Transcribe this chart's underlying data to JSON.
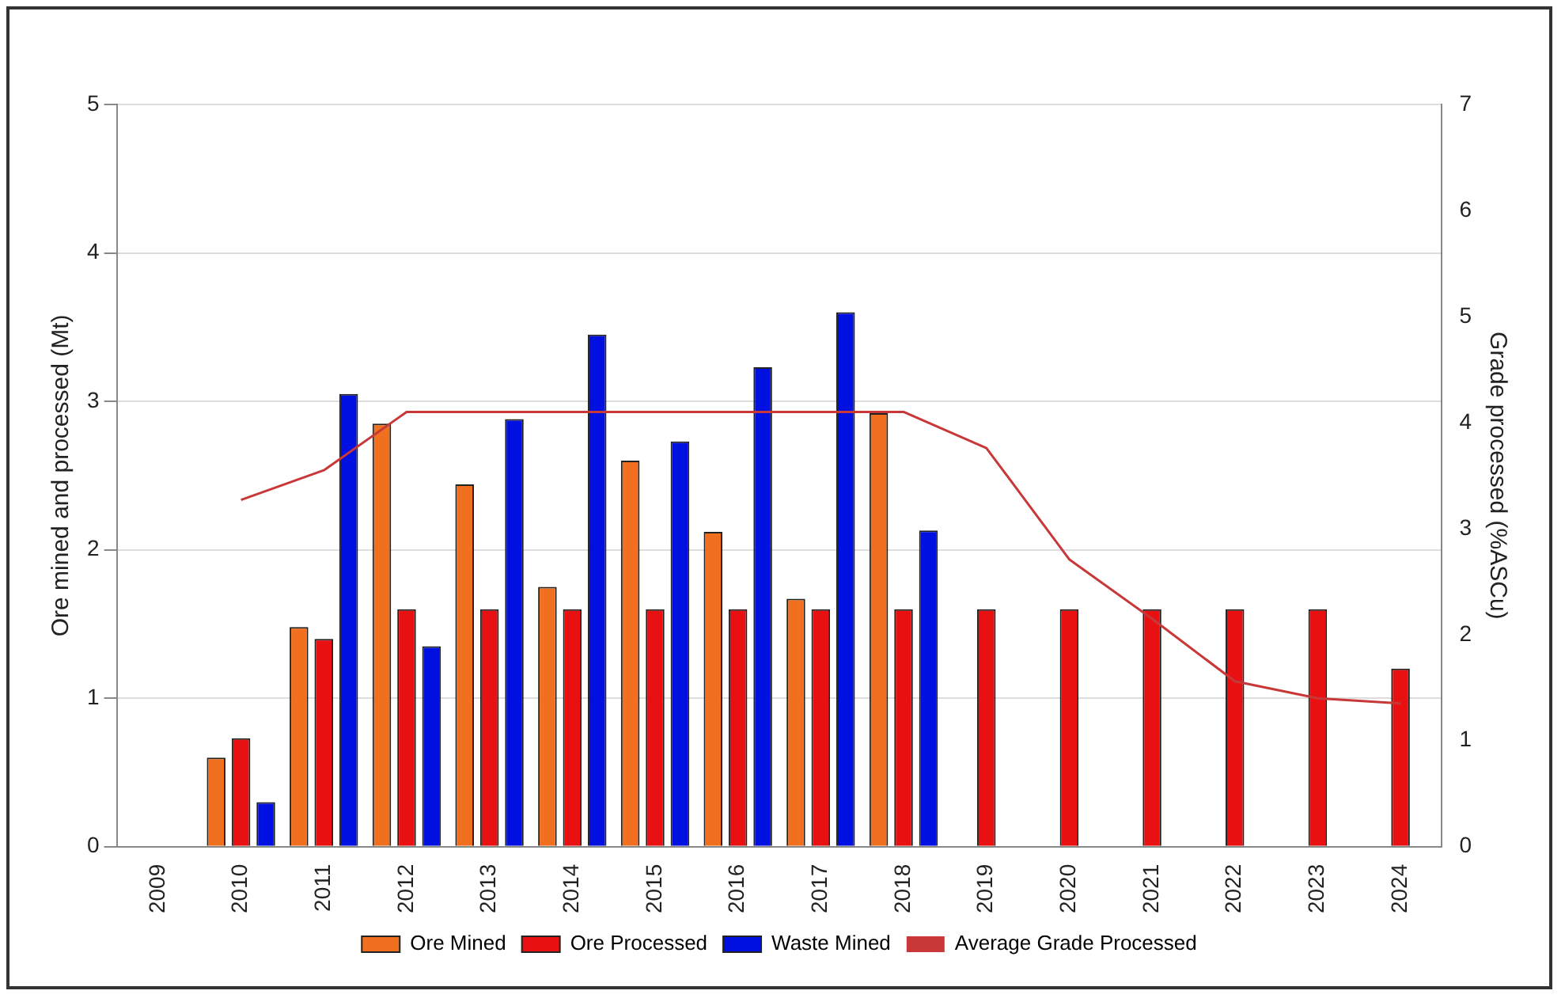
{
  "chart_data": {
    "type": "bar",
    "categories": [
      "2009",
      "2010",
      "2011",
      "2012",
      "2013",
      "2014",
      "2015",
      "2016",
      "2017",
      "2018",
      "2019",
      "2020",
      "2021",
      "2022",
      "2023",
      "2024"
    ],
    "series": [
      {
        "name": "Ore Mined",
        "color": "#f07020",
        "values": [
          null,
          0.6,
          1.48,
          2.85,
          2.44,
          1.75,
          2.6,
          2.12,
          1.67,
          2.92,
          null,
          null,
          null,
          null,
          null,
          null
        ]
      },
      {
        "name": "Ore Processed",
        "color": "#e81010",
        "values": [
          null,
          0.73,
          1.4,
          1.6,
          1.6,
          1.6,
          1.6,
          1.6,
          1.6,
          1.6,
          1.6,
          1.6,
          1.6,
          1.6,
          1.6,
          1.2
        ]
      },
      {
        "name": "Waste Mined",
        "color": "#0010e0",
        "values": [
          null,
          0.3,
          3.05,
          1.35,
          2.88,
          3.45,
          2.73,
          3.23,
          3.6,
          2.13,
          null,
          null,
          null,
          null,
          null,
          null
        ]
      },
      {
        "name": "Average Grade Processed",
        "type": "line",
        "axis": "y2",
        "color": "#c83838",
        "values": [
          null,
          3.27,
          3.55,
          4.1,
          4.1,
          4.1,
          4.1,
          4.1,
          4.1,
          4.1,
          3.76,
          2.71,
          2.15,
          1.56,
          1.4,
          1.35
        ]
      }
    ],
    "ylabel": "Ore mined and processed (Mt)",
    "y2label": "Grade processed (%ASCu)",
    "ylim": [
      0,
      5
    ],
    "yticks": [
      0,
      1,
      2,
      3,
      4,
      5
    ],
    "y2lim": [
      0,
      7
    ],
    "y2ticks": [
      0,
      1,
      2,
      3,
      4,
      5,
      6,
      7
    ],
    "grid": "y",
    "legend": "bottom",
    "marker": "none"
  }
}
